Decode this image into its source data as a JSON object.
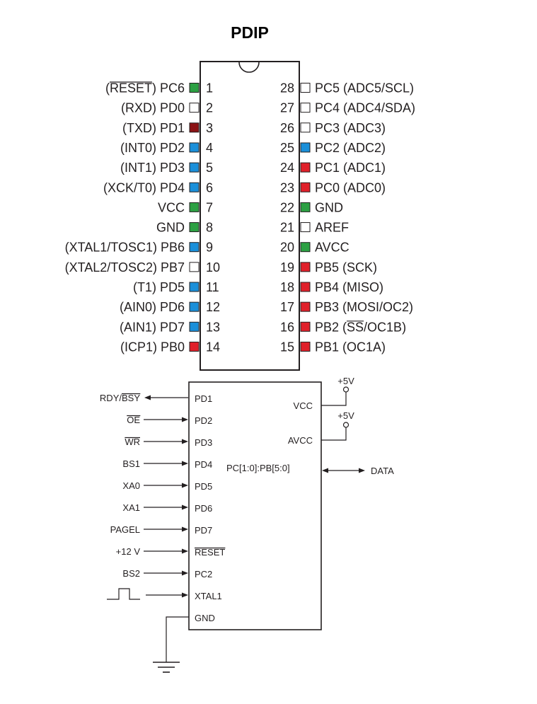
{
  "title": "PDIP",
  "colors": {
    "green": "#2ca043",
    "blue": "#1a8fd9",
    "red": "#e0202a",
    "darkred": "#8b1214",
    "none": "#ffffff"
  },
  "pins_left": [
    {
      "num": "1",
      "pre": "(",
      "over": "RESET",
      "post": ") PC6",
      "color": "green"
    },
    {
      "num": "2",
      "pre": "(RXD) PD0",
      "color": "none"
    },
    {
      "num": "3",
      "pre": "(TXD) PD1",
      "color": "darkred"
    },
    {
      "num": "4",
      "pre": "(INT0) PD2",
      "color": "blue"
    },
    {
      "num": "5",
      "pre": "(INT1) PD3",
      "color": "blue"
    },
    {
      "num": "6",
      "pre": "(XCK/T0) PD4",
      "color": "blue"
    },
    {
      "num": "7",
      "pre": "VCC",
      "color": "green"
    },
    {
      "num": "8",
      "pre": "GND",
      "color": "green"
    },
    {
      "num": "9",
      "pre": "(XTAL1/TOSC1) PB6",
      "color": "blue"
    },
    {
      "num": "10",
      "pre": "(XTAL2/TOSC2) PB7",
      "color": "none"
    },
    {
      "num": "11",
      "pre": "(T1) PD5",
      "color": "blue"
    },
    {
      "num": "12",
      "pre": "(AIN0) PD6",
      "color": "blue"
    },
    {
      "num": "13",
      "pre": "(AIN1) PD7",
      "color": "blue"
    },
    {
      "num": "14",
      "pre": "(ICP1) PB0",
      "color": "red"
    }
  ],
  "pins_right": [
    {
      "num": "28",
      "pre": "PC5 (ADC5/SCL)",
      "color": "none"
    },
    {
      "num": "27",
      "pre": "PC4 (ADC4/SDA)",
      "color": "none"
    },
    {
      "num": "26",
      "pre": "PC3 (ADC3)",
      "color": "none"
    },
    {
      "num": "25",
      "pre": "PC2 (ADC2)",
      "color": "blue"
    },
    {
      "num": "24",
      "pre": "PC1 (ADC1)",
      "color": "red"
    },
    {
      "num": "23",
      "pre": "PC0 (ADC0)",
      "color": "red"
    },
    {
      "num": "22",
      "pre": "GND",
      "color": "green"
    },
    {
      "num": "21",
      "pre": "AREF",
      "color": "none"
    },
    {
      "num": "20",
      "pre": "AVCC",
      "color": "green"
    },
    {
      "num": "19",
      "pre": "PB5 (SCK)",
      "color": "red"
    },
    {
      "num": "18",
      "pre": "PB4 (MISO)",
      "color": "red"
    },
    {
      "num": "17",
      "pre": "PB3 (MOSI/OC2)",
      "color": "red"
    },
    {
      "num": "16",
      "pre": "PB2 (",
      "over": "SS",
      "post": "/OC1B)",
      "color": "red"
    },
    {
      "num": "15",
      "pre": "PB1 (OC1A)",
      "color": "red"
    }
  ],
  "prog_inputs": [
    {
      "sig": "RDY/",
      "sig_over": "BSY",
      "pin": "PD1",
      "dir": "out"
    },
    {
      "sig_over": "OE",
      "pin": "PD2",
      "dir": "in"
    },
    {
      "sig_over": "WR",
      "pin": "PD3",
      "dir": "in"
    },
    {
      "sig": "BS1",
      "pin": "PD4",
      "dir": "in"
    },
    {
      "sig": "XA0",
      "pin": "PD5",
      "dir": "in"
    },
    {
      "sig": "XA1",
      "pin": "PD6",
      "dir": "in"
    },
    {
      "sig": "PAGEL",
      "pin": "PD7",
      "dir": "in"
    },
    {
      "sig": "+12 V",
      "pin_over": "RESET",
      "dir": "in"
    },
    {
      "sig": "BS2",
      "pin": "PC2",
      "dir": "in"
    },
    {
      "sig": "",
      "pin": "XTAL1",
      "dir": "clock"
    },
    {
      "sig": "",
      "pin": "GND",
      "dir": "ground"
    }
  ],
  "prog_right": {
    "vcc": "VCC",
    "avcc": "AVCC",
    "supply1": "+5V",
    "supply2": "+5V",
    "bus": "PC[1:0]:PB[5:0]",
    "data": "DATA"
  }
}
